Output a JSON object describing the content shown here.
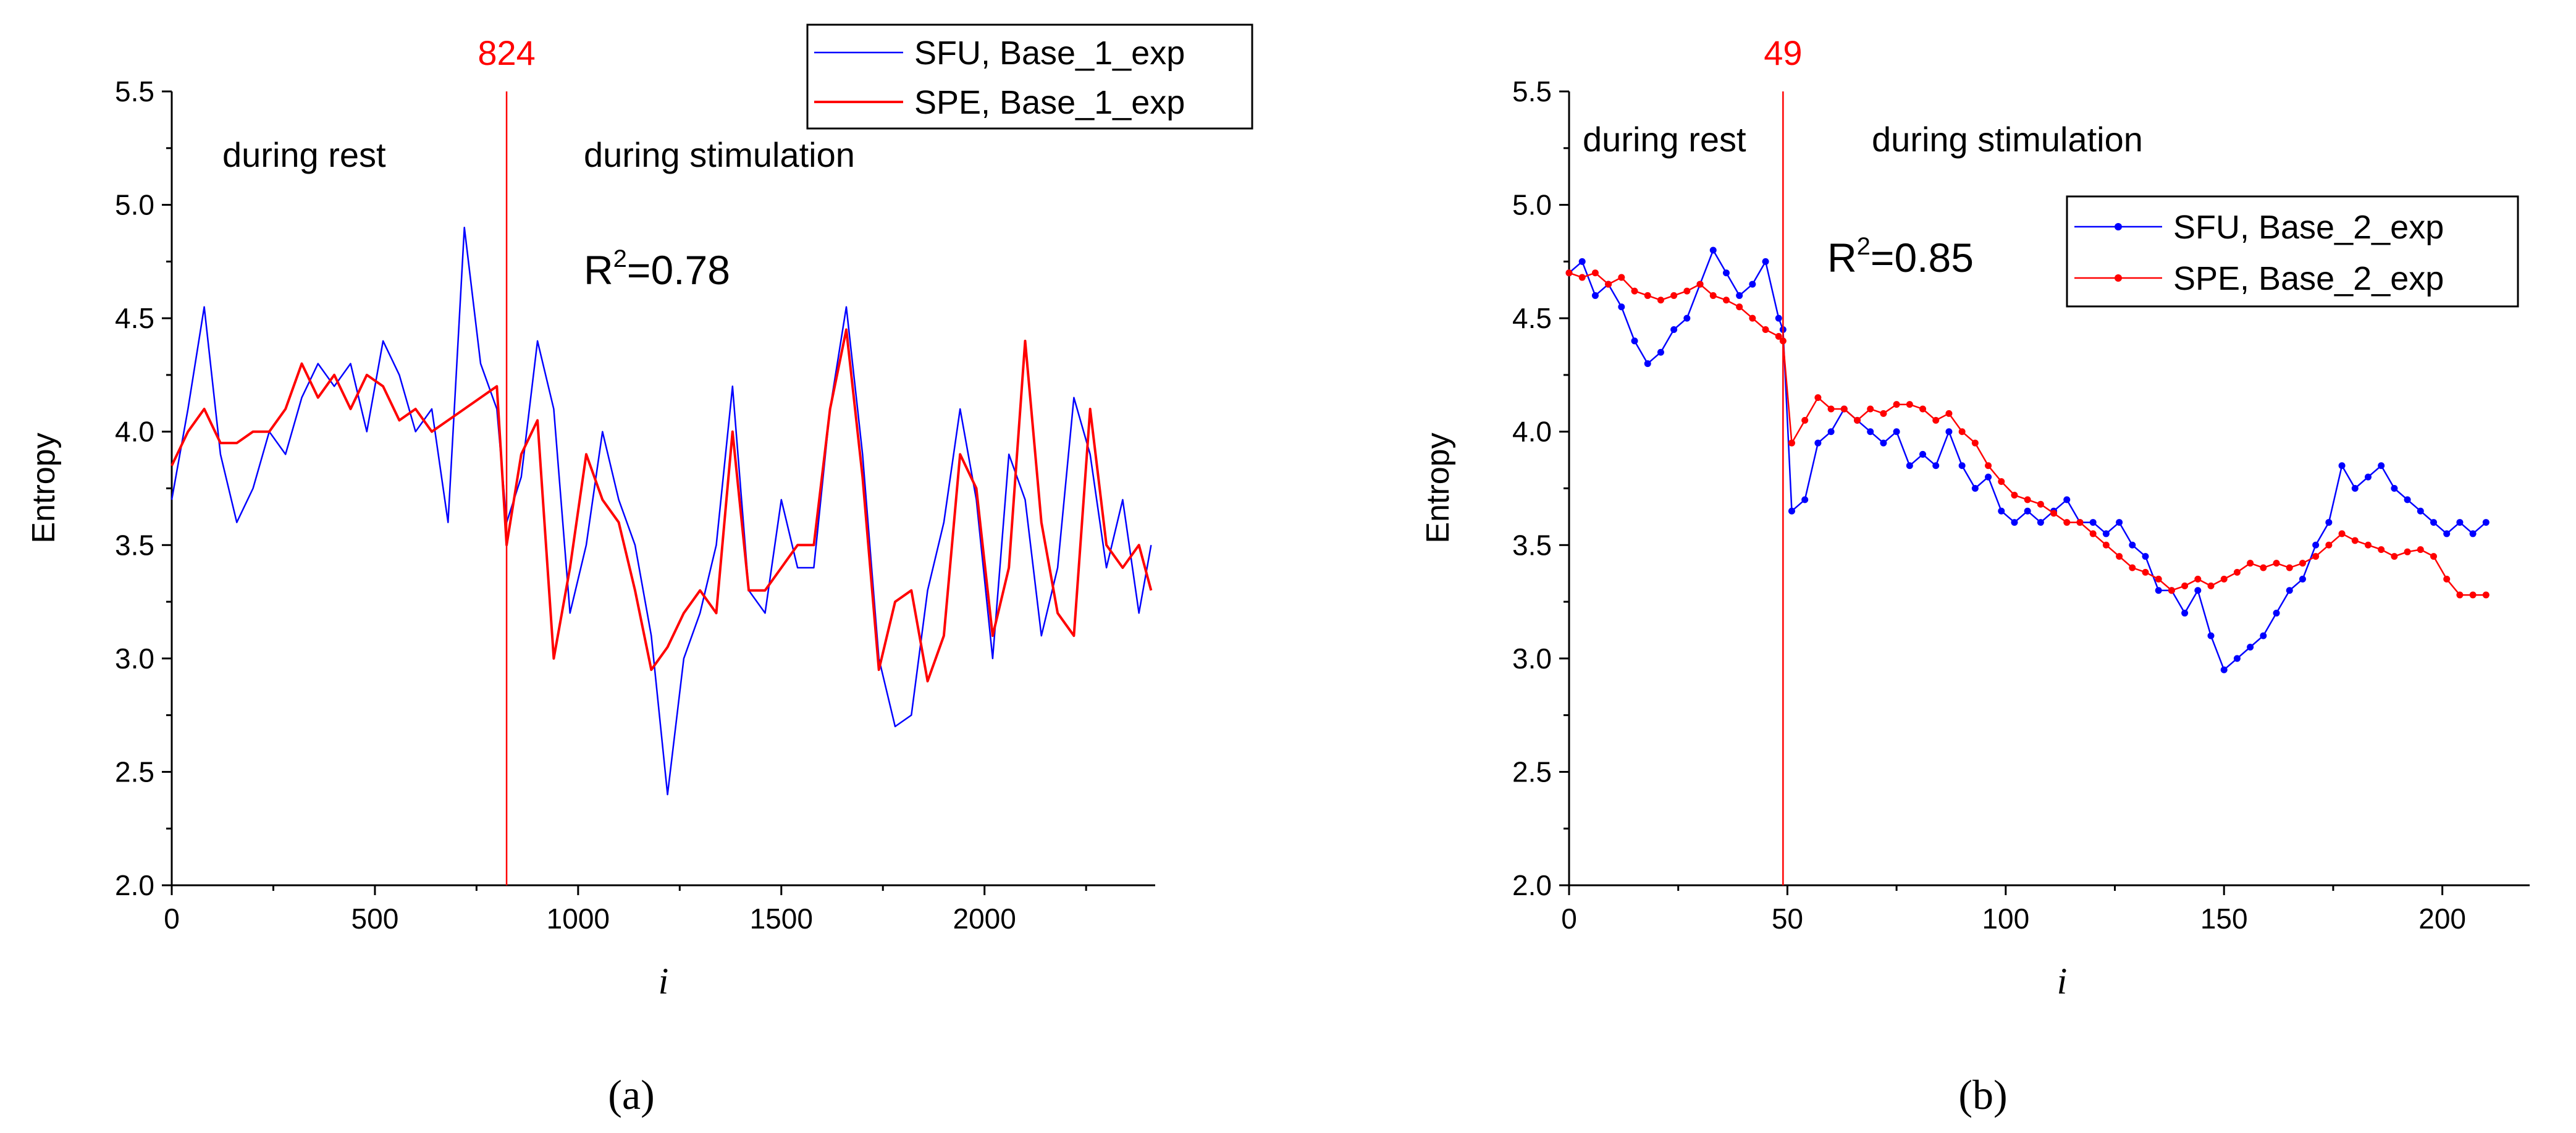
{
  "chart_data": [
    {
      "type": "line",
      "panel_label": "(a)",
      "xlabel": "i",
      "ylabel": "Entropy",
      "xlim": [
        0,
        2420
      ],
      "ylim": [
        2.0,
        5.5
      ],
      "xticks": [
        0,
        500,
        1000,
        1500,
        2000
      ],
      "yticks": [
        2.0,
        2.5,
        3.0,
        3.5,
        4.0,
        4.5,
        5.0,
        5.5
      ],
      "tick_labels_x": [
        "0",
        "500",
        "1000",
        "1500",
        "2000"
      ],
      "tick_labels_y": [
        "2.0",
        "2.5",
        "3.0",
        "3.5",
        "4.0",
        "4.5",
        "5.0",
        "5.5"
      ],
      "marker": {
        "x": 824,
        "label": "824",
        "color": "#ff0000"
      },
      "annotations": {
        "rest": "during rest",
        "stim": "during stimulation"
      },
      "r2": {
        "base": "R",
        "sup": "2",
        "rest": "=0.78"
      },
      "series": [
        {
          "name": "SFU, Base_1_exp",
          "color": "#0000ff",
          "style": "thin-line",
          "x": [
            0,
            40,
            80,
            120,
            160,
            200,
            240,
            280,
            320,
            360,
            400,
            440,
            480,
            520,
            560,
            600,
            640,
            680,
            720,
            760,
            800,
            824,
            860,
            900,
            940,
            980,
            1020,
            1060,
            1100,
            1140,
            1180,
            1220,
            1260,
            1300,
            1340,
            1380,
            1420,
            1460,
            1500,
            1540,
            1580,
            1620,
            1660,
            1700,
            1740,
            1780,
            1820,
            1860,
            1900,
            1940,
            1980,
            2020,
            2060,
            2100,
            2140,
            2180,
            2220,
            2260,
            2300,
            2340,
            2380,
            2410
          ],
          "values": [
            3.7,
            4.1,
            4.55,
            3.9,
            3.6,
            3.75,
            4.0,
            3.9,
            4.15,
            4.3,
            4.2,
            4.3,
            4.0,
            4.4,
            4.25,
            4.0,
            4.1,
            3.6,
            4.9,
            4.3,
            4.1,
            3.6,
            3.8,
            4.4,
            4.1,
            3.2,
            3.5,
            4.0,
            3.7,
            3.5,
            3.1,
            2.4,
            3.0,
            3.2,
            3.5,
            4.2,
            3.3,
            3.2,
            3.7,
            3.4,
            3.4,
            4.1,
            4.55,
            3.9,
            3.0,
            2.7,
            2.75,
            3.3,
            3.6,
            4.1,
            3.7,
            3.0,
            3.9,
            3.7,
            3.1,
            3.4,
            4.15,
            3.9,
            3.4,
            3.7,
            3.2,
            3.5
          ]
        },
        {
          "name": "SPE, Base_1_exp",
          "color": "#ff0000",
          "style": "line",
          "x": [
            0,
            40,
            80,
            120,
            160,
            200,
            240,
            280,
            320,
            360,
            400,
            440,
            480,
            520,
            560,
            600,
            640,
            680,
            720,
            760,
            800,
            824,
            860,
            900,
            940,
            980,
            1020,
            1060,
            1100,
            1140,
            1180,
            1220,
            1260,
            1300,
            1340,
            1380,
            1420,
            1460,
            1500,
            1540,
            1580,
            1620,
            1660,
            1700,
            1740,
            1780,
            1820,
            1860,
            1900,
            1940,
            1980,
            2020,
            2060,
            2100,
            2140,
            2180,
            2220,
            2260,
            2300,
            2340,
            2380,
            2410
          ],
          "values": [
            3.85,
            4.0,
            4.1,
            3.95,
            3.95,
            4.0,
            4.0,
            4.1,
            4.3,
            4.15,
            4.25,
            4.1,
            4.25,
            4.2,
            4.05,
            4.1,
            4.0,
            4.05,
            4.1,
            4.15,
            4.2,
            3.5,
            3.9,
            4.05,
            3.0,
            3.4,
            3.9,
            3.7,
            3.6,
            3.3,
            2.95,
            3.05,
            3.2,
            3.3,
            3.2,
            4.0,
            3.3,
            3.3,
            3.4,
            3.5,
            3.5,
            4.1,
            4.45,
            3.8,
            2.95,
            3.25,
            3.3,
            2.9,
            3.1,
            3.9,
            3.75,
            3.1,
            3.4,
            4.4,
            3.6,
            3.2,
            3.1,
            4.1,
            3.5,
            3.4,
            3.5,
            3.3
          ]
        }
      ]
    },
    {
      "type": "line",
      "panel_label": "(b)",
      "xlabel": "i",
      "ylabel": "Entropy",
      "xlim": [
        0,
        220
      ],
      "ylim": [
        2.0,
        5.5
      ],
      "xticks": [
        0,
        50,
        100,
        150,
        200
      ],
      "yticks": [
        2.0,
        2.5,
        3.0,
        3.5,
        4.0,
        4.5,
        5.0,
        5.5
      ],
      "tick_labels_x": [
        "0",
        "50",
        "100",
        "150",
        "200"
      ],
      "tick_labels_y": [
        "2.0",
        "2.5",
        "3.0",
        "3.5",
        "4.0",
        "4.5",
        "5.0",
        "5.5"
      ],
      "marker": {
        "x": 49,
        "label": "49",
        "color": "#ff0000"
      },
      "annotations": {
        "rest": "during rest",
        "stim": "during stimulation"
      },
      "r2": {
        "base": "R",
        "sup": "2",
        "rest": "=0.85"
      },
      "series": [
        {
          "name": "SFU, Base_2_exp",
          "color": "#0000ff",
          "style": "line-markers",
          "x": [
            0,
            3,
            6,
            9,
            12,
            15,
            18,
            21,
            24,
            27,
            30,
            33,
            36,
            39,
            42,
            45,
            48,
            49,
            51,
            54,
            57,
            60,
            63,
            66,
            69,
            72,
            75,
            78,
            81,
            84,
            87,
            90,
            93,
            96,
            99,
            102,
            105,
            108,
            111,
            114,
            117,
            120,
            123,
            126,
            129,
            132,
            135,
            138,
            141,
            144,
            147,
            150,
            153,
            156,
            159,
            162,
            165,
            168,
            171,
            174,
            177,
            180,
            183,
            186,
            189,
            192,
            195,
            198,
            201,
            204,
            207,
            210
          ],
          "values": [
            4.7,
            4.75,
            4.6,
            4.65,
            4.55,
            4.4,
            4.3,
            4.35,
            4.45,
            4.5,
            4.65,
            4.8,
            4.7,
            4.6,
            4.65,
            4.75,
            4.5,
            4.45,
            3.65,
            3.7,
            3.95,
            4.0,
            4.1,
            4.05,
            4.0,
            3.95,
            4.0,
            3.85,
            3.9,
            3.85,
            4.0,
            3.85,
            3.75,
            3.8,
            3.65,
            3.6,
            3.65,
            3.6,
            3.65,
            3.7,
            3.6,
            3.6,
            3.55,
            3.6,
            3.5,
            3.45,
            3.3,
            3.3,
            3.2,
            3.3,
            3.1,
            2.95,
            3.0,
            3.05,
            3.1,
            3.2,
            3.3,
            3.35,
            3.5,
            3.6,
            3.85,
            3.75,
            3.8,
            3.85,
            3.75,
            3.7,
            3.65,
            3.6,
            3.55,
            3.6,
            3.55,
            3.6
          ]
        },
        {
          "name": "SPE, Base_2_exp",
          "color": "#ff0000",
          "style": "line-markers",
          "x": [
            0,
            3,
            6,
            9,
            12,
            15,
            18,
            21,
            24,
            27,
            30,
            33,
            36,
            39,
            42,
            45,
            48,
            49,
            51,
            54,
            57,
            60,
            63,
            66,
            69,
            72,
            75,
            78,
            81,
            84,
            87,
            90,
            93,
            96,
            99,
            102,
            105,
            108,
            111,
            114,
            117,
            120,
            123,
            126,
            129,
            132,
            135,
            138,
            141,
            144,
            147,
            150,
            153,
            156,
            159,
            162,
            165,
            168,
            171,
            174,
            177,
            180,
            183,
            186,
            189,
            192,
            195,
            198,
            201,
            204,
            207,
            210
          ],
          "values": [
            4.7,
            4.68,
            4.7,
            4.65,
            4.68,
            4.62,
            4.6,
            4.58,
            4.6,
            4.62,
            4.65,
            4.6,
            4.58,
            4.55,
            4.5,
            4.45,
            4.42,
            4.4,
            3.95,
            4.05,
            4.15,
            4.1,
            4.1,
            4.05,
            4.1,
            4.08,
            4.12,
            4.12,
            4.1,
            4.05,
            4.08,
            4.0,
            3.95,
            3.85,
            3.78,
            3.72,
            3.7,
            3.68,
            3.64,
            3.6,
            3.6,
            3.55,
            3.5,
            3.45,
            3.4,
            3.38,
            3.35,
            3.3,
            3.32,
            3.35,
            3.32,
            3.35,
            3.38,
            3.42,
            3.4,
            3.42,
            3.4,
            3.42,
            3.45,
            3.5,
            3.55,
            3.52,
            3.5,
            3.48,
            3.45,
            3.47,
            3.48,
            3.45,
            3.35,
            3.28,
            3.28,
            3.28
          ]
        }
      ]
    }
  ]
}
